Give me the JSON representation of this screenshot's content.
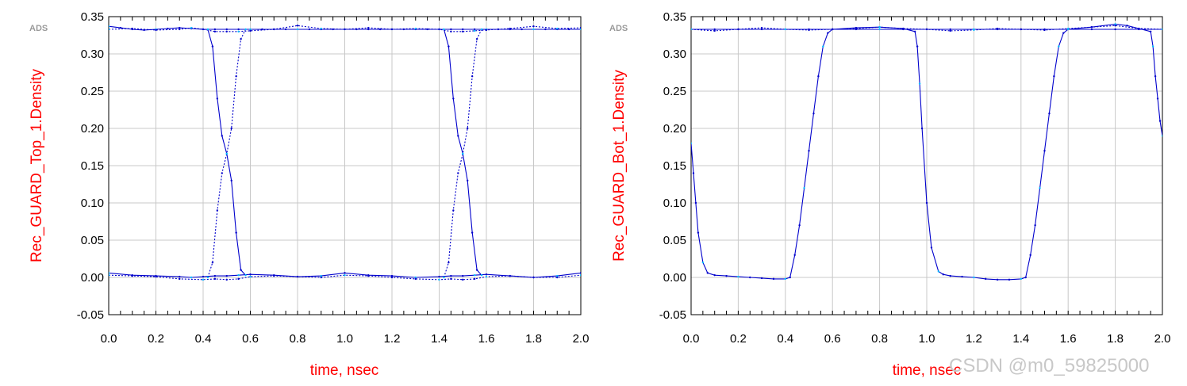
{
  "watermark": "CSDN @m0_59825000",
  "colors": {
    "axis_label": "#ff0000",
    "trace": "#0000cc",
    "trace_highlight": "#00bfff",
    "grid": "#c8c8c8"
  },
  "chart_data": [
    {
      "type": "line",
      "subtype": "eye-diagram-traces",
      "ads_mark": "ADS",
      "xlabel": "time, nsec",
      "ylabel": "Rec_GUARD_Top_1.Density",
      "xlim": [
        0.0,
        2.0
      ],
      "ylim": [
        -0.05,
        0.35
      ],
      "xticks": [
        "0.0",
        "0.2",
        "0.4",
        "0.6",
        "0.8",
        "1.0",
        "1.2",
        "1.4",
        "1.6",
        "1.8",
        "2.0"
      ],
      "yticks": [
        "-0.05",
        "0.00",
        "0.05",
        "0.10",
        "0.15",
        "0.20",
        "0.25",
        "0.30",
        "0.35"
      ],
      "grid": true,
      "series": [
        {
          "x": [
            0.0,
            0.05,
            0.1,
            0.15,
            0.2,
            0.25,
            0.3,
            0.35,
            0.4,
            0.45,
            0.5,
            0.55,
            0.6,
            0.65,
            0.7,
            0.75,
            0.8,
            0.85,
            0.9,
            0.95,
            1.0,
            1.05,
            1.1,
            1.15,
            1.2,
            1.25,
            1.3,
            1.35,
            1.4,
            1.45,
            1.5,
            1.55,
            1.6,
            1.65,
            1.7,
            1.75,
            1.8,
            1.85,
            1.9,
            1.95,
            2.0
          ],
          "y": [
            0.337,
            0.335,
            0.333,
            0.332,
            0.333,
            0.334,
            0.335,
            0.334,
            0.333,
            0.333,
            0.333,
            0.333,
            0.333,
            0.333,
            0.333,
            0.333,
            0.333,
            0.333,
            0.333,
            0.333,
            0.333,
            0.333,
            0.333,
            0.333,
            0.333,
            0.333,
            0.333,
            0.333,
            0.333,
            0.333,
            0.333,
            0.333,
            0.333,
            0.333,
            0.333,
            0.333,
            0.333,
            0.333,
            0.333,
            0.333,
            0.333
          ]
        },
        {
          "x": [
            0.0,
            0.1,
            0.2,
            0.3,
            0.35,
            0.4,
            0.45,
            0.5,
            0.55,
            0.6,
            0.7,
            0.8,
            0.9,
            1.0,
            1.1,
            1.2,
            1.3,
            1.4,
            1.45,
            1.5,
            1.55,
            1.6,
            1.7,
            1.8,
            1.9,
            2.0
          ],
          "y": [
            0.333,
            0.334,
            0.332,
            0.333,
            0.335,
            0.333,
            0.33,
            0.33,
            0.33,
            0.331,
            0.333,
            0.338,
            0.334,
            0.333,
            0.335,
            0.333,
            0.334,
            0.333,
            0.33,
            0.33,
            0.331,
            0.332,
            0.334,
            0.337,
            0.334,
            0.335
          ]
        },
        {
          "x": [
            0.0,
            0.1,
            0.2,
            0.3,
            0.35,
            0.4,
            0.45,
            0.5,
            0.55,
            0.6,
            0.7,
            0.8,
            0.9,
            1.0,
            1.1,
            1.2,
            1.3,
            1.4,
            1.45,
            1.5,
            1.55,
            1.6,
            1.7,
            1.8,
            1.9,
            2.0
          ],
          "y": [
            0.006,
            0.003,
            0.002,
            0.001,
            0.0,
            0.001,
            0.002,
            0.002,
            0.003,
            0.004,
            0.003,
            0.001,
            0.002,
            0.006,
            0.003,
            0.002,
            0.0,
            0.001,
            0.002,
            0.002,
            0.003,
            0.004,
            0.002,
            0.0,
            0.002,
            0.006
          ]
        },
        {
          "x": [
            0.0,
            0.1,
            0.2,
            0.3,
            0.4,
            0.45,
            0.5,
            0.55,
            0.6,
            0.7,
            0.8,
            0.9,
            1.0,
            1.1,
            1.2,
            1.3,
            1.4,
            1.45,
            1.5,
            1.55,
            1.6,
            1.7,
            1.8,
            1.9,
            2.0
          ],
          "y": [
            0.003,
            0.002,
            0.001,
            -0.002,
            -0.003,
            -0.002,
            -0.003,
            -0.002,
            0.001,
            0.002,
            0.001,
            0.0,
            0.003,
            0.002,
            0.0,
            -0.002,
            -0.003,
            -0.002,
            -0.003,
            -0.002,
            0.001,
            0.002,
            0.0,
            0.0,
            0.003
          ]
        },
        {
          "x": [
            0.42,
            0.44,
            0.46,
            0.48,
            0.5,
            0.52,
            0.54,
            0.56,
            0.58
          ],
          "y": [
            0.333,
            0.31,
            0.24,
            0.19,
            0.166,
            0.13,
            0.06,
            0.01,
            0.003
          ]
        },
        {
          "x": [
            0.42,
            0.44,
            0.46,
            0.48,
            0.5,
            0.52,
            0.54,
            0.56,
            0.58
          ],
          "y": [
            0.0,
            0.02,
            0.09,
            0.14,
            0.166,
            0.2,
            0.27,
            0.32,
            0.333
          ]
        },
        {
          "x": [
            1.42,
            1.44,
            1.46,
            1.48,
            1.5,
            1.52,
            1.54,
            1.56,
            1.58
          ],
          "y": [
            0.333,
            0.31,
            0.24,
            0.19,
            0.166,
            0.13,
            0.06,
            0.01,
            0.003
          ]
        },
        {
          "x": [
            1.42,
            1.44,
            1.46,
            1.48,
            1.5,
            1.52,
            1.54,
            1.56,
            1.58
          ],
          "y": [
            0.0,
            0.02,
            0.09,
            0.14,
            0.166,
            0.2,
            0.27,
            0.32,
            0.333
          ]
        }
      ]
    },
    {
      "type": "line",
      "subtype": "eye-diagram-traces",
      "ads_mark": "ADS",
      "xlabel": "time, nsec",
      "ylabel": "Rec_GUARD_Bot_1.Density",
      "xlim": [
        0.0,
        2.0
      ],
      "ylim": [
        -0.05,
        0.35
      ],
      "xticks": [
        "0.0",
        "0.2",
        "0.4",
        "0.6",
        "0.8",
        "1.0",
        "1.2",
        "1.4",
        "1.6",
        "1.8",
        "2.0"
      ],
      "yticks": [
        "-0.05",
        "0.00",
        "0.05",
        "0.10",
        "0.15",
        "0.20",
        "0.25",
        "0.30",
        "0.35"
      ],
      "grid": true,
      "series": [
        {
          "x": [
            0.0,
            0.01,
            0.02,
            0.03,
            0.05,
            0.07,
            0.1,
            0.15,
            0.2,
            0.25,
            0.3,
            0.35,
            0.4,
            0.42,
            0.44,
            0.46,
            0.48,
            0.5,
            0.52,
            0.54,
            0.56,
            0.58,
            0.6,
            0.7,
            0.8,
            0.9,
            0.95,
            0.96,
            0.97,
            0.98,
            1.0,
            1.02,
            1.05,
            1.07,
            1.1,
            1.15,
            1.2,
            1.25,
            1.3,
            1.35,
            1.4,
            1.42,
            1.44,
            1.46,
            1.48,
            1.5,
            1.52,
            1.54,
            1.56,
            1.58,
            1.6,
            1.7,
            1.8,
            1.85,
            1.9,
            1.95,
            1.96,
            1.97,
            1.98,
            1.99,
            2.0
          ],
          "y": [
            0.18,
            0.14,
            0.1,
            0.06,
            0.02,
            0.006,
            0.003,
            0.002,
            0.001,
            0.0,
            -0.001,
            -0.002,
            -0.002,
            0.0,
            0.03,
            0.07,
            0.12,
            0.17,
            0.22,
            0.27,
            0.31,
            0.328,
            0.333,
            0.335,
            0.336,
            0.334,
            0.33,
            0.31,
            0.26,
            0.2,
            0.1,
            0.04,
            0.008,
            0.004,
            0.002,
            0.001,
            0.0,
            -0.002,
            -0.003,
            -0.003,
            -0.002,
            0.0,
            0.03,
            0.07,
            0.12,
            0.17,
            0.22,
            0.27,
            0.31,
            0.328,
            0.333,
            0.336,
            0.34,
            0.338,
            0.334,
            0.33,
            0.31,
            0.27,
            0.24,
            0.21,
            0.19
          ]
        },
        {
          "x": [
            0.0,
            0.1,
            0.2,
            0.3,
            0.4,
            0.5,
            0.6,
            0.7,
            0.8,
            0.9,
            1.0,
            1.1,
            1.2,
            1.3,
            1.4,
            1.5,
            1.6,
            1.7,
            1.8,
            1.9,
            2.0
          ],
          "y": [
            0.333,
            0.331,
            0.333,
            0.335,
            0.333,
            0.332,
            0.333,
            0.334,
            0.336,
            0.334,
            0.333,
            0.331,
            0.332,
            0.334,
            0.333,
            0.332,
            0.334,
            0.336,
            0.338,
            0.334,
            0.333
          ]
        },
        {
          "x": [
            0.0,
            0.1,
            0.2,
            0.3,
            0.4,
            0.5,
            0.6,
            0.7,
            0.8,
            0.9,
            1.0,
            1.1,
            1.2,
            1.3,
            1.4,
            1.5,
            1.6,
            1.7,
            1.8,
            1.9,
            2.0
          ],
          "y": [
            0.333,
            0.333,
            0.333,
            0.333,
            0.333,
            0.333,
            0.333,
            0.333,
            0.333,
            0.333,
            0.333,
            0.333,
            0.333,
            0.333,
            0.333,
            0.333,
            0.333,
            0.333,
            0.333,
            0.333,
            0.333
          ]
        }
      ]
    }
  ]
}
